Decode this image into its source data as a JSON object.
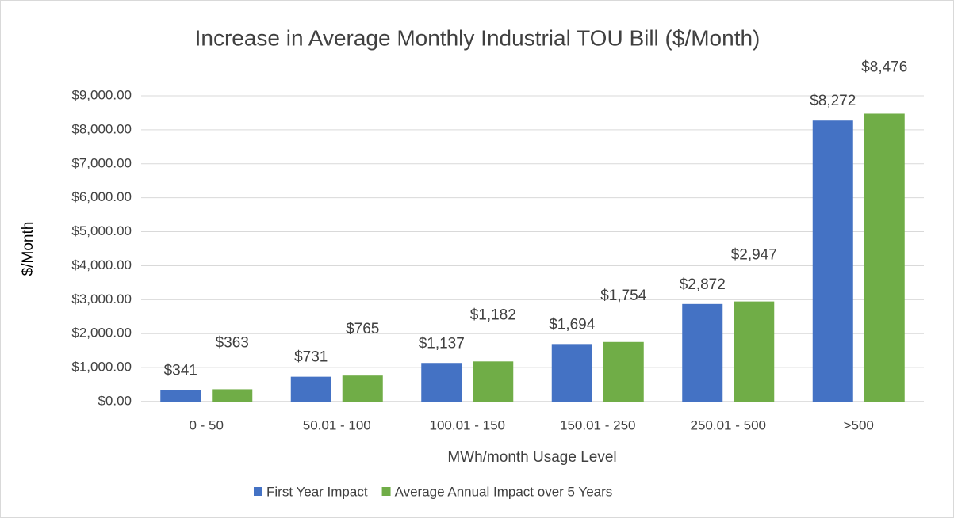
{
  "chart_data": {
    "type": "bar",
    "title": "Increase in Average Monthly Industrial TOU Bill ($/Month)",
    "y_label": "$/Month",
    "x_label": "MWh/month Usage Level",
    "categories": [
      "0 - 50",
      "50.01 - 100",
      "100.01 - 150",
      "150.01 - 250",
      "250.01 - 500",
      ">500"
    ],
    "series": [
      {
        "name": "First Year Impact",
        "color": "#4472c4",
        "values": [
          341,
          731,
          1137,
          1694,
          2872,
          8272
        ],
        "value_labels": [
          "$341",
          "$731",
          "$1,137",
          "$1,694",
          "$2,872",
          "$8,272"
        ]
      },
      {
        "name": "Average Annual Impact over 5 Years",
        "color": "#70ad47",
        "values": [
          363,
          765,
          1182,
          1754,
          2947,
          8476
        ],
        "value_labels": [
          "$363",
          "$765",
          "$1,182",
          "$1,754",
          "$2,947",
          "$8,476"
        ]
      }
    ],
    "ylim": [
      0,
      9000
    ],
    "yticks": [
      {
        "value": 0,
        "label": "$0.00"
      },
      {
        "value": 1000,
        "label": "$1,000.00"
      },
      {
        "value": 2000,
        "label": "$2,000.00"
      },
      {
        "value": 3000,
        "label": "$3,000.00"
      },
      {
        "value": 4000,
        "label": "$4,000.00"
      },
      {
        "value": 5000,
        "label": "$5,000.00"
      },
      {
        "value": 6000,
        "label": "$6,000.00"
      },
      {
        "value": 7000,
        "label": "$7,000.00"
      },
      {
        "value": 8000,
        "label": "$8,000.00"
      },
      {
        "value": 9000,
        "label": "$9,000.00"
      }
    ],
    "grid": true,
    "legend": "bottom"
  }
}
